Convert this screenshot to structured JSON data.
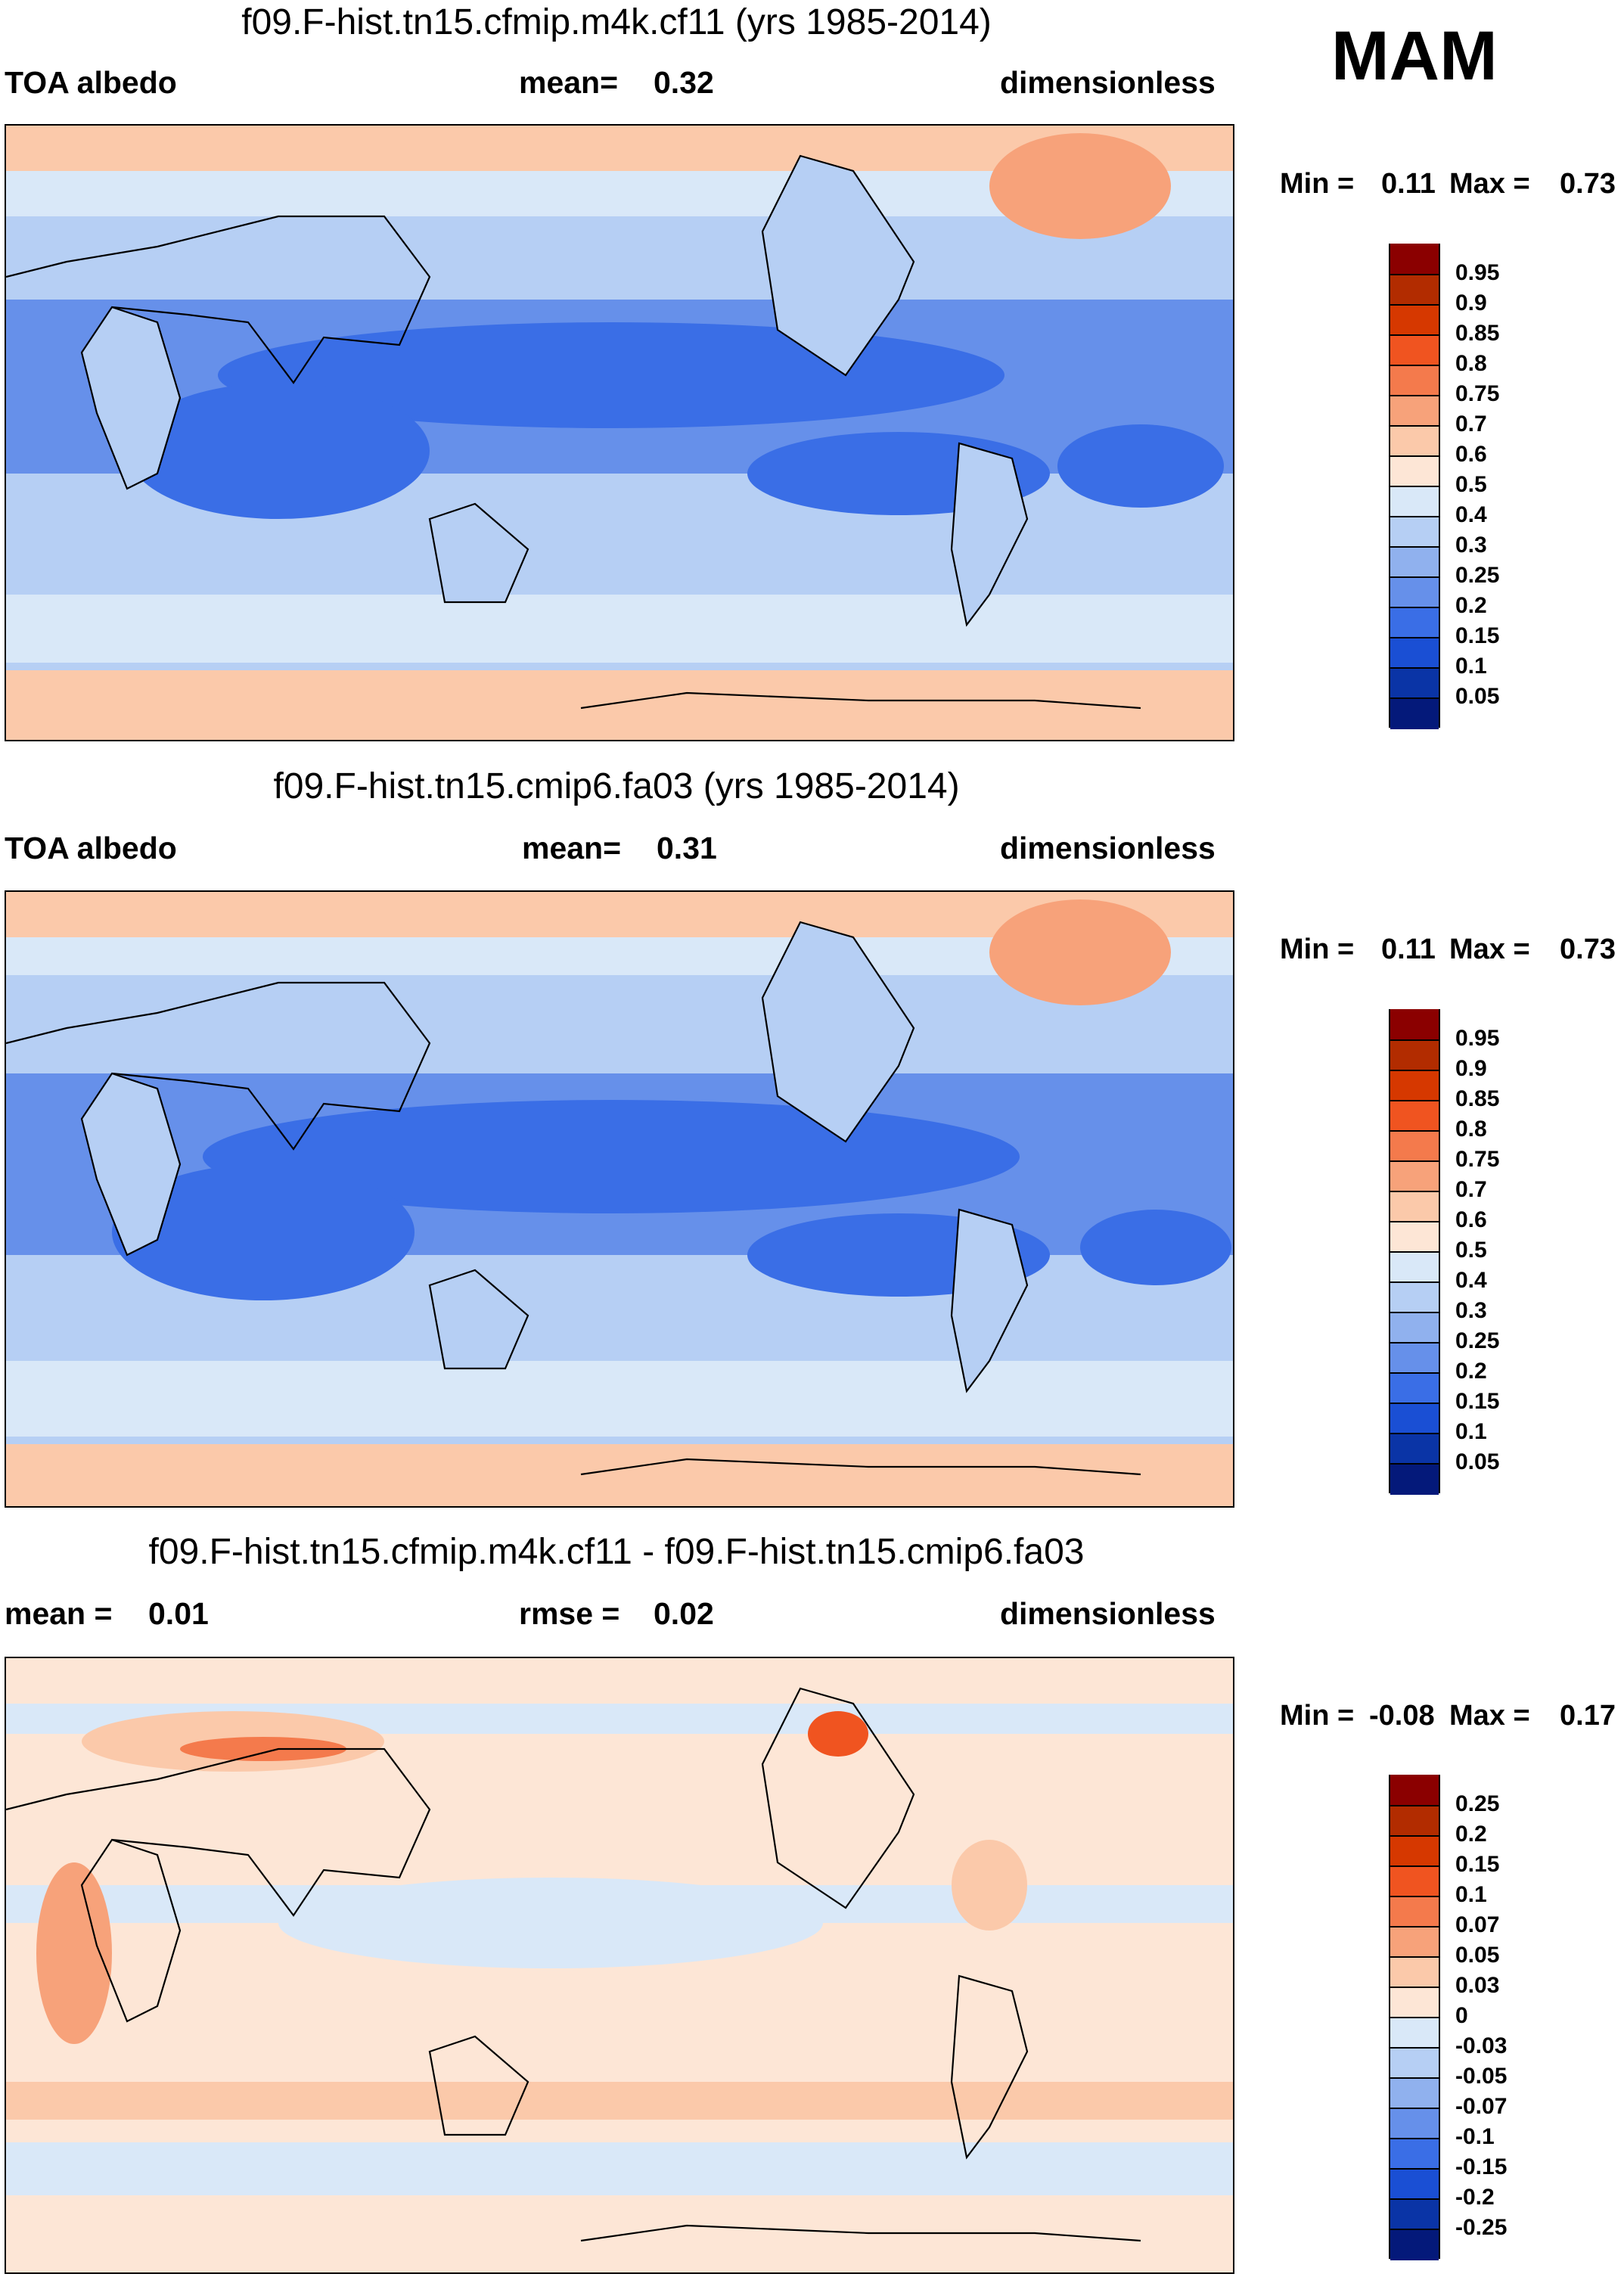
{
  "season": "MAM",
  "panels": [
    {
      "title": "f09.F-hist.tn15.cfmip.m4k.cf11 (yrs 1985-2014)",
      "left_label": "TOA albedo",
      "center_label": "mean=",
      "center_value": "0.32",
      "right_label": "dimensionless",
      "min_label": "Min =",
      "min_value": "0.11",
      "max_label": "Max =",
      "max_value": "0.73",
      "colorbar": {
        "labels": [
          "0.95",
          "0.9",
          "0.85",
          "0.8",
          "0.75",
          "0.7",
          "0.6",
          "0.5",
          "0.4",
          "0.3",
          "0.25",
          "0.2",
          "0.15",
          "0.1",
          "0.05"
        ],
        "colors": [
          "#8b0000",
          "#b22c00",
          "#d63800",
          "#f05420",
          "#f47a4c",
          "#f7a27a",
          "#fbc9aa",
          "#fde6d6",
          "#d9e8f8",
          "#b6cff4",
          "#90b1ee",
          "#6690ea",
          "#3a6ee6",
          "#1a4fd4",
          "#0a34a6",
          "#04197a"
        ]
      }
    },
    {
      "title": "f09.F-hist.tn15.cmip6.fa03 (yrs 1985-2014)",
      "left_label": "TOA albedo",
      "center_label": "mean=",
      "center_value": "0.31",
      "right_label": "dimensionless",
      "min_label": "Min =",
      "min_value": "0.11",
      "max_label": "Max =",
      "max_value": "0.73",
      "colorbar": {
        "labels": [
          "0.95",
          "0.9",
          "0.85",
          "0.8",
          "0.75",
          "0.7",
          "0.6",
          "0.5",
          "0.4",
          "0.3",
          "0.25",
          "0.2",
          "0.15",
          "0.1",
          "0.05"
        ],
        "colors": [
          "#8b0000",
          "#b22c00",
          "#d63800",
          "#f05420",
          "#f47a4c",
          "#f7a27a",
          "#fbc9aa",
          "#fde6d6",
          "#d9e8f8",
          "#b6cff4",
          "#90b1ee",
          "#6690ea",
          "#3a6ee6",
          "#1a4fd4",
          "#0a34a6",
          "#04197a"
        ]
      }
    },
    {
      "title": "f09.F-hist.tn15.cfmip.m4k.cf11 - f09.F-hist.tn15.cmip6.fa03",
      "left_label": "mean =",
      "left_value": "0.01",
      "center_label": "rmse =",
      "center_value": "0.02",
      "right_label": "dimensionless",
      "min_label": "Min =",
      "min_value": "-0.08",
      "max_label": "Max =",
      "max_value": "0.17",
      "colorbar": {
        "labels": [
          "0.25",
          "0.2",
          "0.15",
          "0.1",
          "0.07",
          "0.05",
          "0.03",
          "0",
          "-0.03",
          "-0.05",
          "-0.07",
          "-0.1",
          "-0.15",
          "-0.2",
          "-0.25"
        ],
        "colors": [
          "#8b0000",
          "#b22c00",
          "#d63800",
          "#f05420",
          "#f47a4c",
          "#f7a27a",
          "#fbc9aa",
          "#fde6d6",
          "#d9e8f8",
          "#b6cff4",
          "#90b1ee",
          "#6690ea",
          "#3a6ee6",
          "#1a4fd4",
          "#0a34a6",
          "#04197a"
        ]
      }
    }
  ],
  "chart_data": [
    {
      "type": "heatmap",
      "title": "f09.F-hist.tn15.cfmip.m4k.cf11 (yrs 1985-2014)",
      "variable": "TOA albedo",
      "units": "dimensionless",
      "mean": 0.32,
      "min": 0.11,
      "max": 0.73,
      "contour_levels": [
        0.05,
        0.1,
        0.15,
        0.2,
        0.25,
        0.3,
        0.4,
        0.5,
        0.6,
        0.7,
        0.75,
        0.8,
        0.85,
        0.9,
        0.95
      ],
      "xlim": [
        0,
        360
      ],
      "ylim": [
        -90,
        90
      ]
    },
    {
      "type": "heatmap",
      "title": "f09.F-hist.tn15.cmip6.fa03 (yrs 1985-2014)",
      "variable": "TOA albedo",
      "units": "dimensionless",
      "mean": 0.31,
      "min": 0.11,
      "max": 0.73,
      "contour_levels": [
        0.05,
        0.1,
        0.15,
        0.2,
        0.25,
        0.3,
        0.4,
        0.5,
        0.6,
        0.7,
        0.75,
        0.8,
        0.85,
        0.9,
        0.95
      ],
      "xlim": [
        0,
        360
      ],
      "ylim": [
        -90,
        90
      ]
    },
    {
      "type": "heatmap",
      "title": "f09.F-hist.tn15.cfmip.m4k.cf11 - f09.F-hist.tn15.cmip6.fa03",
      "units": "dimensionless",
      "mean": 0.01,
      "rmse": 0.02,
      "min": -0.08,
      "max": 0.17,
      "contour_levels": [
        -0.25,
        -0.2,
        -0.15,
        -0.1,
        -0.07,
        -0.05,
        -0.03,
        0,
        0.03,
        0.05,
        0.07,
        0.1,
        0.15,
        0.2,
        0.25
      ],
      "xlim": [
        0,
        360
      ],
      "ylim": [
        -90,
        90
      ]
    }
  ]
}
